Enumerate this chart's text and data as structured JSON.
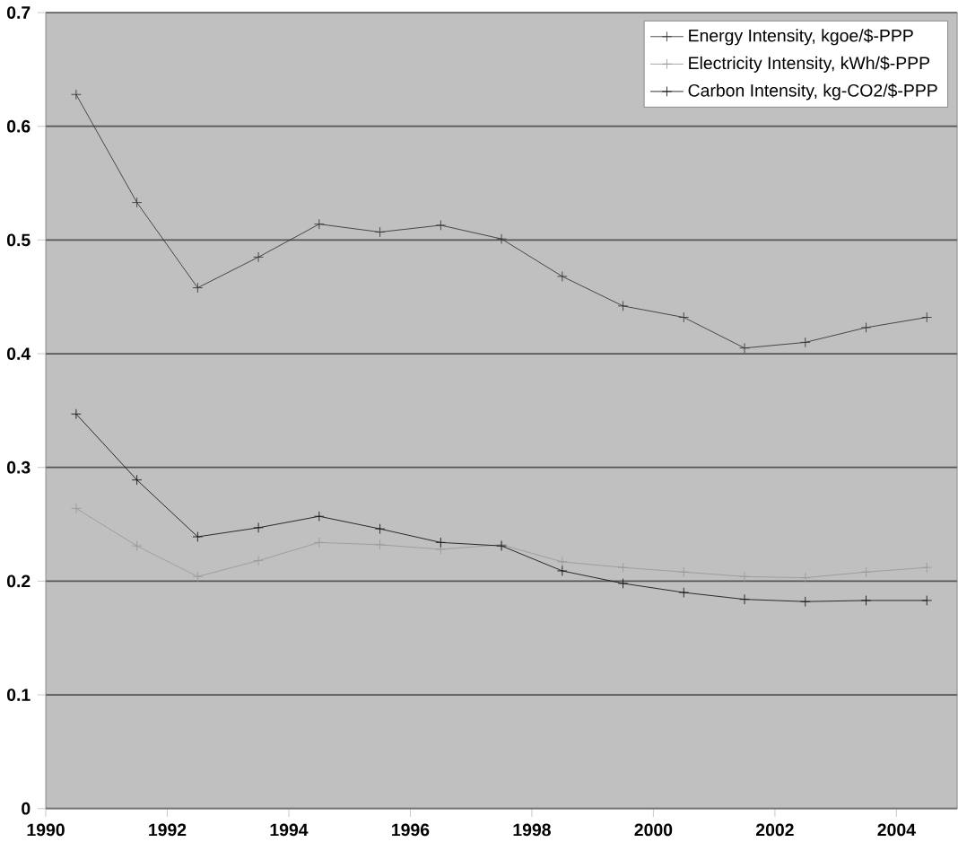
{
  "chart_data": {
    "type": "line",
    "x": [
      1990.5,
      1991.5,
      1992.5,
      1993.5,
      1994.5,
      1995.5,
      1996.5,
      1997.5,
      1998.5,
      1999.5,
      2000.5,
      2001.5,
      2002.5,
      2003.5,
      2004.5
    ],
    "xlim": [
      1990,
      2005
    ],
    "xticks": [
      1990,
      1992,
      1994,
      1996,
      1998,
      2000,
      2002,
      2004
    ],
    "ylim": [
      0,
      0.7
    ],
    "yticks": [
      0,
      0.1,
      0.2,
      0.3,
      0.4,
      0.5,
      0.6,
      0.7
    ],
    "grid": "y",
    "legend": "top right",
    "marker": "cross",
    "line_style": "solid",
    "series": [
      {
        "name": "Energy Intensity, kgoe/$-PPP",
        "color": "#333333",
        "values": [
          0.628,
          0.533,
          0.458,
          0.485,
          0.514,
          0.507,
          0.513,
          0.501,
          0.468,
          0.442,
          0.432,
          0.405,
          0.41,
          0.423,
          0.432
        ]
      },
      {
        "name": "Electricity Intensity, kWh/$-PPP",
        "color": "#999999",
        "values": [
          0.264,
          0.231,
          0.204,
          0.218,
          0.234,
          0.232,
          0.228,
          0.232,
          0.217,
          0.212,
          0.208,
          0.204,
          0.203,
          0.208,
          0.212
        ]
      },
      {
        "name": "Carbon Intensity, kg-CO2/$-PPP",
        "color": "#111111",
        "values": [
          0.347,
          0.289,
          0.239,
          0.247,
          0.257,
          0.246,
          0.234,
          0.231,
          0.209,
          0.198,
          0.19,
          0.184,
          0.182,
          0.183,
          0.183
        ]
      }
    ]
  }
}
